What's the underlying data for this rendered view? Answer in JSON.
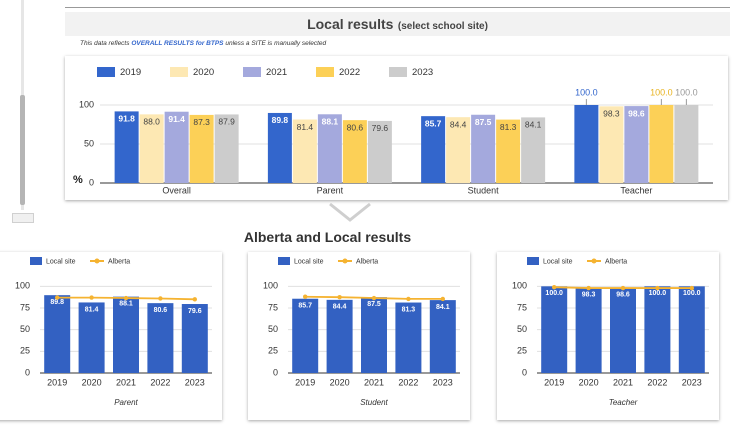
{
  "header": {
    "title": "Local results",
    "title_suffix": "(select school site)"
  },
  "note": {
    "prefix": "This data reflects ",
    "highlight": "OVERALL RESULTS for BTPS",
    "suffix": " unless a SITE is manually selected"
  },
  "section_title": "Alberta and Local results",
  "chart_data": [
    {
      "type": "bar",
      "categories": [
        "Overall",
        "Parent",
        "Student",
        "Teacher"
      ],
      "series": [
        {
          "name": "2019",
          "color": "#3366cc",
          "values": [
            91.8,
            89.8,
            85.7,
            100.0
          ],
          "value_labels": [
            "91.8",
            "89.8",
            "85.7",
            "100.0"
          ]
        },
        {
          "name": "2020",
          "color": "#fde8b3",
          "values": [
            88.0,
            81.4,
            84.4,
            98.3
          ],
          "value_labels": [
            "88.0",
            "81.4",
            "84.4",
            "98.3"
          ]
        },
        {
          "name": "2021",
          "color": "#a4a9dd",
          "values": [
            91.4,
            88.1,
            87.5,
            98.6
          ],
          "value_labels": [
            "91.4",
            "88.1",
            "87.5",
            "98.6"
          ]
        },
        {
          "name": "2022",
          "color": "#fcd057",
          "values": [
            87.3,
            80.6,
            81.3,
            100.0
          ],
          "value_labels": [
            "87.3",
            "80.6",
            "81.3",
            "100.0"
          ]
        },
        {
          "name": "2023",
          "color": "#cccccc",
          "values": [
            87.9,
            79.6,
            84.1,
            100.0
          ],
          "value_labels": [
            "87.9",
            "79.6",
            "84.1",
            "100.0"
          ]
        }
      ],
      "y_label": "%",
      "ylim": [
        0,
        115
      ],
      "yticks": [
        0,
        50,
        100
      ],
      "grid": true,
      "legend": "top-left"
    },
    {
      "type": "combo",
      "categories": [
        "2019",
        "2020",
        "2021",
        "2022",
        "2023"
      ],
      "x_label": "Parent",
      "series": [
        {
          "name": "Local site",
          "type": "bar",
          "color": "#3361c2",
          "values": [
            89.8,
            81.4,
            88.1,
            80.6,
            79.6
          ],
          "value_labels": [
            "89.8",
            "81.4",
            "88.1",
            "80.6",
            "79.6"
          ]
        },
        {
          "name": "Alberta",
          "type": "line",
          "color": "#f5b331",
          "values": [
            87,
            87,
            86.5,
            86,
            85
          ]
        }
      ],
      "ylim": [
        0,
        105
      ],
      "yticks": [
        0,
        25,
        50,
        75,
        100
      ],
      "grid": true,
      "legend": "top-left"
    },
    {
      "type": "combo",
      "categories": [
        "2019",
        "2020",
        "2021",
        "2022",
        "2023"
      ],
      "x_label": "Student",
      "series": [
        {
          "name": "Local site",
          "type": "bar",
          "color": "#3361c2",
          "values": [
            85.7,
            84.4,
            87.5,
            81.3,
            84.1
          ],
          "value_labels": [
            "85.7",
            "84.4",
            "87.5",
            "81.3",
            "84.1"
          ]
        },
        {
          "name": "Alberta",
          "type": "line",
          "color": "#f5b331",
          "values": [
            88,
            87.5,
            86.5,
            85.5,
            85.5
          ]
        }
      ],
      "ylim": [
        0,
        105
      ],
      "yticks": [
        0,
        25,
        50,
        75,
        100
      ],
      "grid": true,
      "legend": "top-left"
    },
    {
      "type": "combo",
      "categories": [
        "2019",
        "2020",
        "2021",
        "2022",
        "2023"
      ],
      "x_label": "Teacher",
      "series": [
        {
          "name": "Local site",
          "type": "bar",
          "color": "#3361c2",
          "values": [
            100.0,
            98.3,
            98.6,
            100.0,
            100.0
          ],
          "value_labels": [
            "100.0",
            "98.3",
            "98.6",
            "100.0",
            "100.0"
          ]
        },
        {
          "name": "Alberta",
          "type": "line",
          "color": "#f5b331",
          "values": [
            99,
            98,
            98,
            98,
            98
          ]
        }
      ],
      "ylim": [
        0,
        105
      ],
      "yticks": [
        0,
        25,
        50,
        75,
        100
      ],
      "grid": true,
      "legend": "top-left"
    }
  ]
}
